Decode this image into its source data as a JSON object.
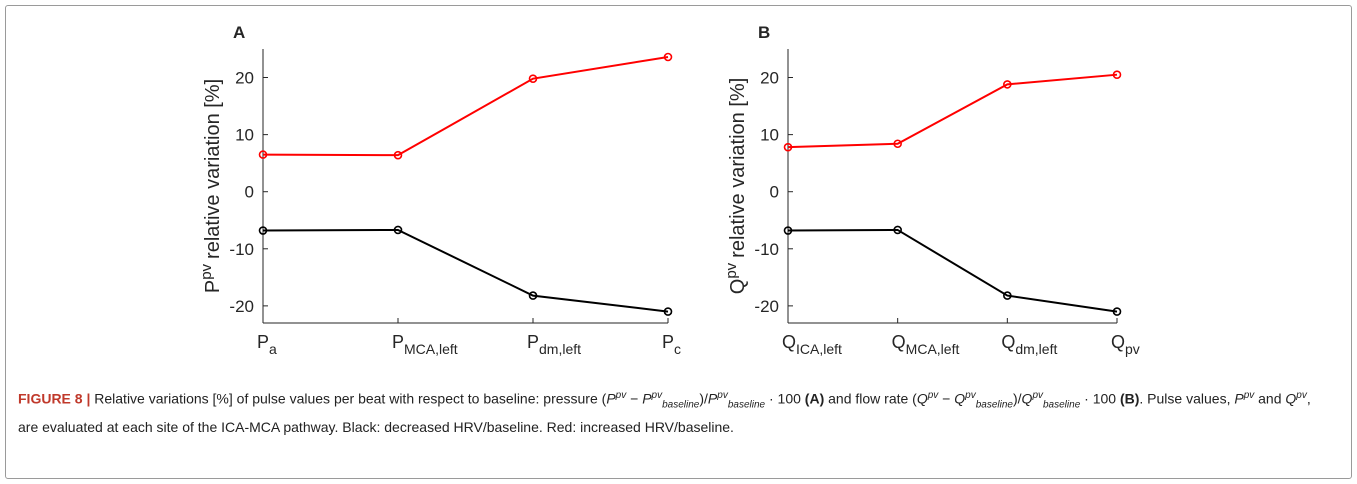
{
  "chart_data": [
    {
      "type": "line",
      "panel_label": "A",
      "categories": [
        "P",
        "P",
        "P",
        "P"
      ],
      "category_subscripts": [
        "a",
        "MCA,left",
        "dm,left",
        "c"
      ],
      "ylabel": {
        "base": "P",
        "sup": "pv",
        "rest": "relative variation [%]"
      },
      "ylim": [
        -23,
        25
      ],
      "yticks": [
        -20,
        -10,
        0,
        10,
        20
      ],
      "series": [
        {
          "name": "increased HRV/baseline",
          "color": "#ff0000",
          "values": [
            6.5,
            6.4,
            19.8,
            23.6
          ]
        },
        {
          "name": "decreased HRV/baseline",
          "color": "#000000",
          "values": [
            -6.8,
            -6.7,
            -18.2,
            -21
          ]
        }
      ]
    },
    {
      "type": "line",
      "panel_label": "B",
      "categories": [
        "Q",
        "Q",
        "Q",
        "Q"
      ],
      "category_subscripts": [
        "ICA,left",
        "MCA,left",
        "dm,left",
        "pv"
      ],
      "ylabel": {
        "base": "Q",
        "sup": "pv",
        "rest": "relative variation [%]"
      },
      "ylim": [
        -23,
        25
      ],
      "yticks": [
        -20,
        -10,
        0,
        10,
        20
      ],
      "series": [
        {
          "name": "increased HRV/baseline",
          "color": "#ff0000",
          "values": [
            7.8,
            8.4,
            18.8,
            20.5
          ]
        },
        {
          "name": "decreased HRV/baseline",
          "color": "#000000",
          "values": [
            -6.8,
            -6.7,
            -18.2,
            -21
          ]
        }
      ]
    }
  ],
  "caption": {
    "label": "FIGURE 8 |",
    "segments": [
      {
        "text": "Relative variations [%] of pulse values per beat with respect to baseline: pressure (",
        "style": "normal"
      },
      {
        "text": "P",
        "style": "italic"
      },
      {
        "text": "pv",
        "style": "sup"
      },
      {
        "text": " − ",
        "style": "normal"
      },
      {
        "text": "P",
        "style": "italic"
      },
      {
        "text": "pv",
        "style": "sup"
      },
      {
        "text": "baseline",
        "style": "sub"
      },
      {
        "text": ")/",
        "style": "normal"
      },
      {
        "text": "P",
        "style": "italic"
      },
      {
        "text": "pv",
        "style": "sup"
      },
      {
        "text": "baseline",
        "style": "sub"
      },
      {
        "text": " · 100 ",
        "style": "normal"
      },
      {
        "text": "(A)",
        "style": "bold"
      },
      {
        "text": " and flow rate (",
        "style": "normal"
      },
      {
        "text": "Q",
        "style": "italic"
      },
      {
        "text": "pv",
        "style": "sup"
      },
      {
        "text": " − ",
        "style": "normal"
      },
      {
        "text": "Q",
        "style": "italic"
      },
      {
        "text": "pv",
        "style": "sup"
      },
      {
        "text": "baseline",
        "style": "sub"
      },
      {
        "text": ")/",
        "style": "normal"
      },
      {
        "text": "Q",
        "style": "italic"
      },
      {
        "text": "pv",
        "style": "sup"
      },
      {
        "text": "baseline",
        "style": "sub"
      },
      {
        "text": " · 100 ",
        "style": "normal"
      },
      {
        "text": "(B)",
        "style": "bold"
      },
      {
        "text": ". Pulse values, ",
        "style": "normal"
      },
      {
        "text": "P",
        "style": "italic"
      },
      {
        "text": "pv",
        "style": "sup"
      },
      {
        "text": " and ",
        "style": "normal"
      },
      {
        "text": "Q",
        "style": "italic"
      },
      {
        "text": "pv",
        "style": "sup"
      },
      {
        "text": ", are evaluated at each site of the ICA-MCA pathway. Black: decreased HRV/baseline. Red: increased HRV/baseline.",
        "style": "normal"
      }
    ]
  }
}
